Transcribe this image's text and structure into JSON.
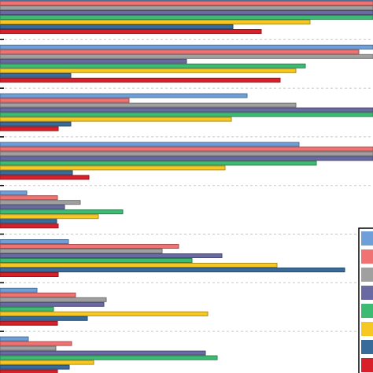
{
  "chart_data": {
    "type": "barh",
    "categories": [
      null,
      null,
      null,
      null,
      null,
      null,
      null,
      null
    ],
    "xlim": [
      0,
      474
    ],
    "grid": true,
    "legend": "lower right",
    "series": [
      {
        "color": "#6f9fd8",
        "values": [
          474,
          474,
          314,
          380,
          34,
          87,
          47,
          36
        ]
      },
      {
        "color": "#f07272",
        "values": [
          474,
          456,
          164,
          474,
          73,
          227,
          96,
          91
        ]
      },
      {
        "color": "#a0a0a0",
        "values": [
          474,
          474,
          376,
          474,
          102,
          206,
          135,
          71
        ]
      },
      {
        "color": "#6a6aa2",
        "values": [
          474,
          237,
          474,
          474,
          82,
          282,
          132,
          261
        ]
      },
      {
        "color": "#3dbb72",
        "values": [
          474,
          388,
          474,
          402,
          156,
          244,
          68,
          276
        ]
      },
      {
        "color": "#f8c822",
        "values": [
          394,
          376,
          294,
          286,
          125,
          352,
          264,
          119
        ]
      },
      {
        "color": "#386a9a",
        "values": [
          296,
          90,
          90,
          92,
          72,
          438,
          111,
          88
        ]
      },
      {
        "color": "#d8202a",
        "values": [
          332,
          356,
          74,
          113,
          74,
          74,
          73,
          73
        ]
      }
    ]
  }
}
